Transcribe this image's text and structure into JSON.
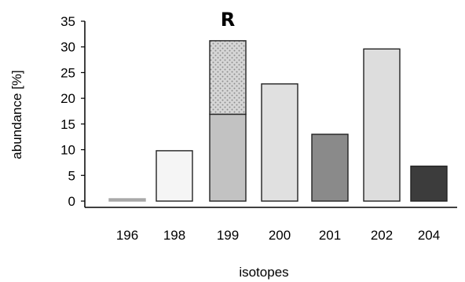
{
  "chart_data": {
    "type": "bar",
    "title": "R",
    "xlabel": "isotopes",
    "ylabel": "abundance [%]",
    "ylim": [
      0,
      35
    ],
    "yticks": [
      0,
      5,
      10,
      15,
      20,
      25,
      30,
      35
    ],
    "grid": false,
    "legend": "none",
    "categories": [
      "196",
      "198",
      "199",
      "200",
      "201",
      "202",
      "204"
    ],
    "values": [
      0.3,
      9.8,
      31.2,
      22.8,
      13.0,
      29.6,
      6.8
    ],
    "stacked_segments": {
      "199": [
        {
          "from": 0,
          "to": 16.9,
          "color": "#c2c2c2",
          "pattern": "solid"
        },
        {
          "from": 16.9,
          "to": 31.2,
          "color": "#d6d6d6",
          "pattern": "dotted"
        }
      ]
    },
    "bar_colors": [
      "#a8a8a8",
      "#f5f5f5",
      "#c2c2c2",
      "#e0e0e0",
      "#8a8a8a",
      "#dddddd",
      "#3c3c3c"
    ]
  }
}
